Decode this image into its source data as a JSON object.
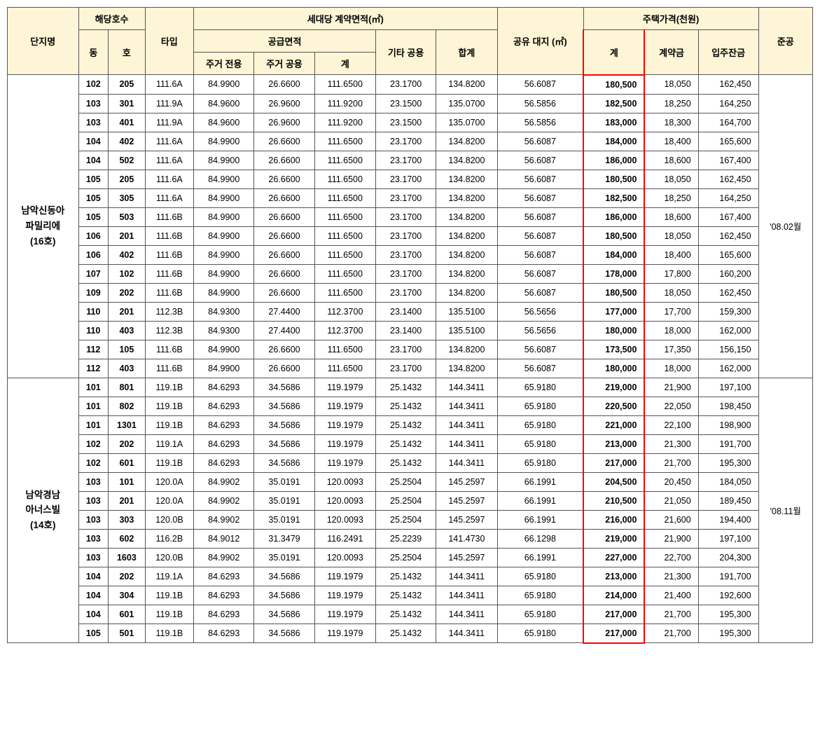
{
  "headers": {
    "complex": "단지명",
    "unit": "해당호수",
    "dong": "동",
    "ho": "호",
    "type": "타입",
    "area_group": "세대당 계약면적(㎡)",
    "supply_area": "공급면적",
    "res_exclusive": "주거\n전용",
    "res_common": "주거\n공용",
    "subtotal": "계",
    "other_common": "기타\n공용",
    "total": "합계",
    "land_share": "공유\n대지\n(㎡)",
    "price_group": "주택가격(천원)",
    "price_total": "계",
    "deposit": "계약금",
    "balance": "입주잔금",
    "completion": "준공"
  },
  "groups": [
    {
      "name": "남악신동아\n파밀리에\n(16호)",
      "completion": "'08.02월",
      "rows": [
        {
          "dong": "102",
          "ho": "205",
          "type": "111.6A",
          "a": "84.9900",
          "b": "26.6600",
          "c": "111.6500",
          "d": "23.1700",
          "e": "134.8200",
          "f": "56.6087",
          "g": "180,500",
          "h": "18,050",
          "i": "162,450"
        },
        {
          "dong": "103",
          "ho": "301",
          "type": "111.9A",
          "a": "84.9600",
          "b": "26.9600",
          "c": "111.9200",
          "d": "23.1500",
          "e": "135.0700",
          "f": "56.5856",
          "g": "182,500",
          "h": "18,250",
          "i": "164,250"
        },
        {
          "dong": "103",
          "ho": "401",
          "type": "111.9A",
          "a": "84.9600",
          "b": "26.9600",
          "c": "111.9200",
          "d": "23.1500",
          "e": "135.0700",
          "f": "56.5856",
          "g": "183,000",
          "h": "18,300",
          "i": "164,700"
        },
        {
          "dong": "104",
          "ho": "402",
          "type": "111.6A",
          "a": "84.9900",
          "b": "26.6600",
          "c": "111.6500",
          "d": "23.1700",
          "e": "134.8200",
          "f": "56.6087",
          "g": "184,000",
          "h": "18,400",
          "i": "165,600"
        },
        {
          "dong": "104",
          "ho": "502",
          "type": "111.6A",
          "a": "84.9900",
          "b": "26.6600",
          "c": "111.6500",
          "d": "23.1700",
          "e": "134.8200",
          "f": "56.6087",
          "g": "186,000",
          "h": "18,600",
          "i": "167,400"
        },
        {
          "dong": "105",
          "ho": "205",
          "type": "111.6A",
          "a": "84.9900",
          "b": "26.6600",
          "c": "111.6500",
          "d": "23.1700",
          "e": "134.8200",
          "f": "56.6087",
          "g": "180,500",
          "h": "18,050",
          "i": "162,450"
        },
        {
          "dong": "105",
          "ho": "305",
          "type": "111.6A",
          "a": "84.9900",
          "b": "26.6600",
          "c": "111.6500",
          "d": "23.1700",
          "e": "134.8200",
          "f": "56.6087",
          "g": "182,500",
          "h": "18,250",
          "i": "164,250"
        },
        {
          "dong": "105",
          "ho": "503",
          "type": "111.6B",
          "a": "84.9900",
          "b": "26.6600",
          "c": "111.6500",
          "d": "23.1700",
          "e": "134.8200",
          "f": "56.6087",
          "g": "186,000",
          "h": "18,600",
          "i": "167,400"
        },
        {
          "dong": "106",
          "ho": "201",
          "type": "111.6B",
          "a": "84.9900",
          "b": "26.6600",
          "c": "111.6500",
          "d": "23.1700",
          "e": "134.8200",
          "f": "56.6087",
          "g": "180,500",
          "h": "18,050",
          "i": "162,450"
        },
        {
          "dong": "106",
          "ho": "402",
          "type": "111.6B",
          "a": "84.9900",
          "b": "26.6600",
          "c": "111.6500",
          "d": "23.1700",
          "e": "134.8200",
          "f": "56.6087",
          "g": "184,000",
          "h": "18,400",
          "i": "165,600"
        },
        {
          "dong": "107",
          "ho": "102",
          "type": "111.6B",
          "a": "84.9900",
          "b": "26.6600",
          "c": "111.6500",
          "d": "23.1700",
          "e": "134.8200",
          "f": "56.6087",
          "g": "178,000",
          "h": "17,800",
          "i": "160,200"
        },
        {
          "dong": "109",
          "ho": "202",
          "type": "111.6B",
          "a": "84.9900",
          "b": "26.6600",
          "c": "111.6500",
          "d": "23.1700",
          "e": "134.8200",
          "f": "56.6087",
          "g": "180,500",
          "h": "18,050",
          "i": "162,450"
        },
        {
          "dong": "110",
          "ho": "201",
          "type": "112.3B",
          "a": "84.9300",
          "b": "27.4400",
          "c": "112.3700",
          "d": "23.1400",
          "e": "135.5100",
          "f": "56.5656",
          "g": "177,000",
          "h": "17,700",
          "i": "159,300"
        },
        {
          "dong": "110",
          "ho": "403",
          "type": "112.3B",
          "a": "84.9300",
          "b": "27.4400",
          "c": "112.3700",
          "d": "23.1400",
          "e": "135.5100",
          "f": "56.5656",
          "g": "180,000",
          "h": "18,000",
          "i": "162,000"
        },
        {
          "dong": "112",
          "ho": "105",
          "type": "111.6B",
          "a": "84.9900",
          "b": "26.6600",
          "c": "111.6500",
          "d": "23.1700",
          "e": "134.8200",
          "f": "56.6087",
          "g": "173,500",
          "h": "17,350",
          "i": "156,150"
        },
        {
          "dong": "112",
          "ho": "403",
          "type": "111.6B",
          "a": "84.9900",
          "b": "26.6600",
          "c": "111.6500",
          "d": "23.1700",
          "e": "134.8200",
          "f": "56.6087",
          "g": "180,000",
          "h": "18,000",
          "i": "162,000"
        }
      ]
    },
    {
      "name": "남악경남\n아너스빌\n(14호)",
      "completion": "'08.11월",
      "rows": [
        {
          "dong": "101",
          "ho": "801",
          "type": "119.1B",
          "a": "84.6293",
          "b": "34.5686",
          "c": "119.1979",
          "d": "25.1432",
          "e": "144.3411",
          "f": "65.9180",
          "g": "219,000",
          "h": "21,900",
          "i": "197,100"
        },
        {
          "dong": "101",
          "ho": "802",
          "type": "119.1B",
          "a": "84.6293",
          "b": "34.5686",
          "c": "119.1979",
          "d": "25.1432",
          "e": "144.3411",
          "f": "65.9180",
          "g": "220,500",
          "h": "22,050",
          "i": "198,450"
        },
        {
          "dong": "101",
          "ho": "1301",
          "type": "119.1B",
          "a": "84.6293",
          "b": "34.5686",
          "c": "119.1979",
          "d": "25.1432",
          "e": "144.3411",
          "f": "65.9180",
          "g": "221,000",
          "h": "22,100",
          "i": "198,900"
        },
        {
          "dong": "102",
          "ho": "202",
          "type": "119.1A",
          "a": "84.6293",
          "b": "34.5686",
          "c": "119.1979",
          "d": "25.1432",
          "e": "144.3411",
          "f": "65.9180",
          "g": "213,000",
          "h": "21,300",
          "i": "191,700"
        },
        {
          "dong": "102",
          "ho": "601",
          "type": "119.1B",
          "a": "84.6293",
          "b": "34.5686",
          "c": "119.1979",
          "d": "25.1432",
          "e": "144.3411",
          "f": "65.9180",
          "g": "217,000",
          "h": "21,700",
          "i": "195,300"
        },
        {
          "dong": "103",
          "ho": "101",
          "type": "120.0A",
          "a": "84.9902",
          "b": "35.0191",
          "c": "120.0093",
          "d": "25.2504",
          "e": "145.2597",
          "f": "66.1991",
          "g": "204,500",
          "h": "20,450",
          "i": "184,050"
        },
        {
          "dong": "103",
          "ho": "201",
          "type": "120.0A",
          "a": "84.9902",
          "b": "35.0191",
          "c": "120.0093",
          "d": "25.2504",
          "e": "145.2597",
          "f": "66.1991",
          "g": "210,500",
          "h": "21,050",
          "i": "189,450"
        },
        {
          "dong": "103",
          "ho": "303",
          "type": "120.0B",
          "a": "84.9902",
          "b": "35.0191",
          "c": "120.0093",
          "d": "25.2504",
          "e": "145.2597",
          "f": "66.1991",
          "g": "216,000",
          "h": "21,600",
          "i": "194,400"
        },
        {
          "dong": "103",
          "ho": "602",
          "type": "116.2B",
          "a": "84.9012",
          "b": "31.3479",
          "c": "116.2491",
          "d": "25.2239",
          "e": "141.4730",
          "f": "66.1298",
          "g": "219,000",
          "h": "21,900",
          "i": "197,100"
        },
        {
          "dong": "103",
          "ho": "1603",
          "type": "120.0B",
          "a": "84.9902",
          "b": "35.0191",
          "c": "120.0093",
          "d": "25.2504",
          "e": "145.2597",
          "f": "66.1991",
          "g": "227,000",
          "h": "22,700",
          "i": "204,300"
        },
        {
          "dong": "104",
          "ho": "202",
          "type": "119.1A",
          "a": "84.6293",
          "b": "34.5686",
          "c": "119.1979",
          "d": "25.1432",
          "e": "144.3411",
          "f": "65.9180",
          "g": "213,000",
          "h": "21,300",
          "i": "191,700"
        },
        {
          "dong": "104",
          "ho": "304",
          "type": "119.1B",
          "a": "84.6293",
          "b": "34.5686",
          "c": "119.1979",
          "d": "25.1432",
          "e": "144.3411",
          "f": "65.9180",
          "g": "214,000",
          "h": "21,400",
          "i": "192,600"
        },
        {
          "dong": "104",
          "ho": "601",
          "type": "119.1B",
          "a": "84.6293",
          "b": "34.5686",
          "c": "119.1979",
          "d": "25.1432",
          "e": "144.3411",
          "f": "65.9180",
          "g": "217,000",
          "h": "21,700",
          "i": "195,300"
        },
        {
          "dong": "105",
          "ho": "501",
          "type": "119.1B",
          "a": "84.6293",
          "b": "34.5686",
          "c": "119.1979",
          "d": "25.1432",
          "e": "144.3411",
          "f": "65.9180",
          "g": "217,000",
          "h": "21,700",
          "i": "195,300"
        }
      ]
    }
  ]
}
